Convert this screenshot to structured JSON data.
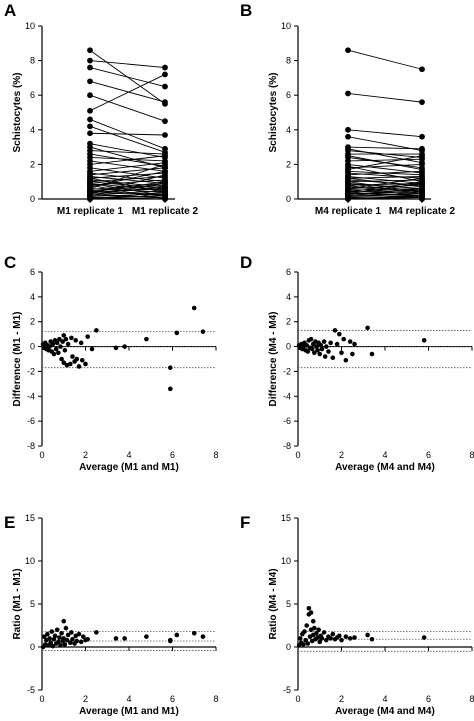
{
  "figure": {
    "panel_labels": [
      "A",
      "B",
      "C",
      "D",
      "E",
      "F"
    ]
  },
  "chart_data": [
    {
      "panel": "A",
      "type": "line",
      "description": "paired replicate measurements (before-after lines)",
      "categories": [
        "M1 replicate 1",
        "M1 replicate 2"
      ],
      "ylabel": "Schistocytes (%)",
      "ylim": [
        0,
        10
      ],
      "yticks": [
        0,
        2,
        4,
        6,
        8,
        10
      ],
      "pairs": [
        [
          8.6,
          5.5
        ],
        [
          8.0,
          7.6
        ],
        [
          7.6,
          6.5
        ],
        [
          6.8,
          5.6
        ],
        [
          6.0,
          4.5
        ],
        [
          5.1,
          7.2
        ],
        [
          4.6,
          2.9
        ],
        [
          4.2,
          2.7
        ],
        [
          3.8,
          3.7
        ],
        [
          3.2,
          2.4
        ],
        [
          3.0,
          1.8
        ],
        [
          2.8,
          2.6
        ],
        [
          2.6,
          1.9
        ],
        [
          2.4,
          2.2
        ],
        [
          2.2,
          1.6
        ],
        [
          2.0,
          2.5
        ],
        [
          1.8,
          1.2
        ],
        [
          1.6,
          2.1
        ],
        [
          1.5,
          1.0
        ],
        [
          1.4,
          1.8
        ],
        [
          1.3,
          0.9
        ],
        [
          1.2,
          1.5
        ],
        [
          1.1,
          0.7
        ],
        [
          1.0,
          1.3
        ],
        [
          0.9,
          0.5
        ],
        [
          0.8,
          1.1
        ],
        [
          0.7,
          1.6
        ],
        [
          0.6,
          0.4
        ],
        [
          0.55,
          0.9
        ],
        [
          0.5,
          0.2
        ],
        [
          0.45,
          0.8
        ],
        [
          0.4,
          0.6
        ],
        [
          0.35,
          0.3
        ],
        [
          0.3,
          0.7
        ],
        [
          0.25,
          0.1
        ],
        [
          0.2,
          0.5
        ],
        [
          0.15,
          0.3
        ],
        [
          0.1,
          0.0
        ],
        [
          0.05,
          0.2
        ],
        [
          0.0,
          0.1
        ],
        [
          0.0,
          0.4
        ],
        [
          0.0,
          0.0
        ],
        [
          0.3,
          1.4
        ],
        [
          0.6,
          2.0
        ],
        [
          0.9,
          0.2
        ],
        [
          1.2,
          0.4
        ],
        [
          0.4,
          1.0
        ],
        [
          0.8,
          0.0
        ],
        [
          0.2,
          0.9
        ],
        [
          1.0,
          0.6
        ]
      ]
    },
    {
      "panel": "B",
      "type": "line",
      "description": "paired replicate measurements (before-after lines)",
      "categories": [
        "M4 replicate 1",
        "M4 replicate 2"
      ],
      "ylabel": "Schistocytes (%)",
      "ylim": [
        0,
        10
      ],
      "yticks": [
        0,
        2,
        4,
        6,
        8,
        10
      ],
      "pairs": [
        [
          8.6,
          7.5
        ],
        [
          6.1,
          5.6
        ],
        [
          4.0,
          3.6
        ],
        [
          3.6,
          2.8
        ],
        [
          3.0,
          2.9
        ],
        [
          2.8,
          2.4
        ],
        [
          2.6,
          2.6
        ],
        [
          2.4,
          1.8
        ],
        [
          2.2,
          2.3
        ],
        [
          2.0,
          1.5
        ],
        [
          1.8,
          2.0
        ],
        [
          1.6,
          1.4
        ],
        [
          1.5,
          1.2
        ],
        [
          1.4,
          1.6
        ],
        [
          1.3,
          0.9
        ],
        [
          1.2,
          1.3
        ],
        [
          1.1,
          0.8
        ],
        [
          1.0,
          1.1
        ],
        [
          0.9,
          0.6
        ],
        [
          0.8,
          0.9
        ],
        [
          0.7,
          0.5
        ],
        [
          0.6,
          0.8
        ],
        [
          0.55,
          0.4
        ],
        [
          0.5,
          0.6
        ],
        [
          0.45,
          0.3
        ],
        [
          0.4,
          0.5
        ],
        [
          0.35,
          0.2
        ],
        [
          0.3,
          0.4
        ],
        [
          0.25,
          0.1
        ],
        [
          0.2,
          0.3
        ],
        [
          0.15,
          0.2
        ],
        [
          0.1,
          0.0
        ],
        [
          0.05,
          0.1
        ],
        [
          0.0,
          0.2
        ],
        [
          0.0,
          0.0
        ],
        [
          0.0,
          0.1
        ],
        [
          0.3,
          0.9
        ],
        [
          0.6,
          1.2
        ],
        [
          0.9,
          0.3
        ],
        [
          1.2,
          0.7
        ],
        [
          0.4,
          1.0
        ],
        [
          0.8,
          0.1
        ],
        [
          0.2,
          0.6
        ],
        [
          1.0,
          0.4
        ],
        [
          1.9,
          1.0
        ],
        [
          2.5,
          1.7
        ],
        [
          1.7,
          2.5
        ],
        [
          2.9,
          2.1
        ]
      ]
    },
    {
      "panel": "C",
      "type": "scatter",
      "description": "Bland-Altman difference plot",
      "xlabel": "Average (M1 and M1)",
      "ylabel": "Difference (M1 - M1)",
      "xlim": [
        0,
        8
      ],
      "ylim": [
        -8,
        6
      ],
      "xticks": [
        0,
        2,
        4,
        6,
        8
      ],
      "yticks": [
        -8,
        -6,
        -4,
        -2,
        0,
        2,
        4,
        6
      ],
      "reference_lines": {
        "upper_loa": 1.2,
        "bias": 0.0,
        "lower_loa": -1.7
      },
      "points": [
        [
          0.05,
          0.2
        ],
        [
          0.1,
          -0.1
        ],
        [
          0.15,
          0.3
        ],
        [
          0.2,
          -0.2
        ],
        [
          0.25,
          0.1
        ],
        [
          0.3,
          -0.3
        ],
        [
          0.35,
          0.0
        ],
        [
          0.4,
          0.4
        ],
        [
          0.45,
          -0.4
        ],
        [
          0.5,
          0.2
        ],
        [
          0.55,
          -0.6
        ],
        [
          0.6,
          0.5
        ],
        [
          0.65,
          -0.2
        ],
        [
          0.7,
          0.3
        ],
        [
          0.75,
          -0.5
        ],
        [
          0.8,
          0.6
        ],
        [
          0.85,
          0.0
        ],
        [
          0.9,
          -1.0
        ],
        [
          0.95,
          0.4
        ],
        [
          1.0,
          -1.3
        ],
        [
          1.0,
          0.9
        ],
        [
          1.05,
          -0.3
        ],
        [
          1.1,
          0.6
        ],
        [
          1.15,
          -1.5
        ],
        [
          1.2,
          0.2
        ],
        [
          1.3,
          -1.4
        ],
        [
          1.35,
          0.7
        ],
        [
          1.4,
          -0.8
        ],
        [
          1.5,
          -1.2
        ],
        [
          1.55,
          0.5
        ],
        [
          1.6,
          -1.0
        ],
        [
          1.7,
          -1.6
        ],
        [
          1.8,
          0.3
        ],
        [
          1.85,
          -1.1
        ],
        [
          2.0,
          -1.4
        ],
        [
          2.1,
          0.8
        ],
        [
          2.3,
          -0.2
        ],
        [
          2.5,
          1.3
        ],
        [
          3.4,
          -0.1
        ],
        [
          3.8,
          0.0
        ],
        [
          4.8,
          0.6
        ],
        [
          5.9,
          -1.7
        ],
        [
          5.9,
          -3.4
        ],
        [
          6.2,
          1.1
        ],
        [
          7.0,
          3.1
        ],
        [
          7.4,
          1.2
        ]
      ]
    },
    {
      "panel": "D",
      "type": "scatter",
      "description": "Bland-Altman difference plot",
      "xlabel": "Average (M4 and M4)",
      "ylabel": "Difference (M4 - M4)",
      "xlim": [
        0,
        8
      ],
      "ylim": [
        -8,
        6
      ],
      "xticks": [
        0,
        2,
        4,
        6,
        8
      ],
      "yticks": [
        -8,
        -6,
        -4,
        -2,
        0,
        2,
        4,
        6
      ],
      "reference_lines": {
        "upper_loa": 1.3,
        "bias": 0.0,
        "lower_loa": -1.7
      },
      "points": [
        [
          0.05,
          0.1
        ],
        [
          0.1,
          -0.1
        ],
        [
          0.15,
          0.2
        ],
        [
          0.2,
          -0.2
        ],
        [
          0.25,
          0.0
        ],
        [
          0.3,
          0.3
        ],
        [
          0.35,
          -0.3
        ],
        [
          0.4,
          0.1
        ],
        [
          0.45,
          -0.4
        ],
        [
          0.5,
          0.5
        ],
        [
          0.55,
          -0.1
        ],
        [
          0.6,
          0.6
        ],
        [
          0.65,
          -0.2
        ],
        [
          0.7,
          0.2
        ],
        [
          0.75,
          -0.5
        ],
        [
          0.8,
          0.4
        ],
        [
          0.85,
          0.0
        ],
        [
          0.9,
          -0.3
        ],
        [
          0.95,
          0.3
        ],
        [
          1.0,
          -0.6
        ],
        [
          1.05,
          0.1
        ],
        [
          1.1,
          -0.2
        ],
        [
          1.2,
          0.4
        ],
        [
          1.25,
          -0.8
        ],
        [
          1.3,
          0.0
        ],
        [
          1.4,
          -0.4
        ],
        [
          1.5,
          0.3
        ],
        [
          1.6,
          -0.9
        ],
        [
          1.7,
          1.3
        ],
        [
          1.8,
          0.2
        ],
        [
          1.9,
          1.0
        ],
        [
          2.0,
          -0.5
        ],
        [
          2.1,
          0.6
        ],
        [
          2.2,
          -1.1
        ],
        [
          2.4,
          0.4
        ],
        [
          2.5,
          -0.6
        ],
        [
          2.6,
          0.2
        ],
        [
          3.2,
          1.5
        ],
        [
          3.4,
          -0.6
        ],
        [
          5.8,
          0.5
        ]
      ]
    },
    {
      "panel": "E",
      "type": "scatter",
      "description": "ratio plot",
      "xlabel": "Average (M1 and M1)",
      "ylabel": "Ratio (M1 - M1)",
      "xlim": [
        0,
        8
      ],
      "ylim": [
        -5,
        15
      ],
      "xticks": [
        0,
        2,
        4,
        6,
        8
      ],
      "yticks": [
        -5,
        0,
        5,
        10,
        15
      ],
      "reference_lines": {
        "upper_loa": 1.8,
        "bias": 0.7,
        "lower_loa": -0.4
      },
      "points": [
        [
          0.05,
          0.0
        ],
        [
          0.1,
          1.2
        ],
        [
          0.15,
          0.3
        ],
        [
          0.2,
          0.8
        ],
        [
          0.25,
          1.5
        ],
        [
          0.3,
          0.2
        ],
        [
          0.35,
          1.0
        ],
        [
          0.4,
          0.5
        ],
        [
          0.45,
          1.8
        ],
        [
          0.5,
          0.1
        ],
        [
          0.55,
          0.9
        ],
        [
          0.6,
          1.3
        ],
        [
          0.65,
          0.4
        ],
        [
          0.7,
          2.0
        ],
        [
          0.75,
          0.6
        ],
        [
          0.8,
          1.1
        ],
        [
          0.85,
          0.2
        ],
        [
          0.9,
          1.6
        ],
        [
          0.95,
          0.7
        ],
        [
          1.0,
          3.0
        ],
        [
          1.0,
          1.0
        ],
        [
          1.05,
          0.3
        ],
        [
          1.1,
          2.2
        ],
        [
          1.15,
          0.8
        ],
        [
          1.2,
          1.4
        ],
        [
          1.3,
          0.5
        ],
        [
          1.35,
          1.7
        ],
        [
          1.4,
          0.9
        ],
        [
          1.5,
          0.4
        ],
        [
          1.55,
          1.3
        ],
        [
          1.6,
          0.7
        ],
        [
          1.7,
          1.5
        ],
        [
          1.8,
          0.6
        ],
        [
          1.9,
          1.2
        ],
        [
          2.0,
          0.8
        ],
        [
          2.1,
          0.9
        ],
        [
          2.5,
          1.7
        ],
        [
          3.4,
          1.0
        ],
        [
          3.8,
          1.0
        ],
        [
          4.8,
          1.2
        ],
        [
          5.9,
          0.7
        ],
        [
          5.9,
          0.8
        ],
        [
          6.2,
          1.4
        ],
        [
          7.0,
          1.6
        ],
        [
          7.4,
          1.2
        ]
      ]
    },
    {
      "panel": "F",
      "type": "scatter",
      "description": "ratio plot",
      "xlabel": "Average (M4 and M4)",
      "ylabel": "Ratio (M4 - M4)",
      "xlim": [
        0,
        8
      ],
      "ylim": [
        -5,
        15
      ],
      "xticks": [
        0,
        2,
        4,
        6,
        8
      ],
      "yticks": [
        -5,
        0,
        5,
        10,
        15
      ],
      "reference_lines": {
        "upper_loa": 1.8,
        "bias": 0.9,
        "lower_loa": -0.5
      },
      "points": [
        [
          0.05,
          0.2
        ],
        [
          0.1,
          1.0
        ],
        [
          0.15,
          0.5
        ],
        [
          0.2,
          1.5
        ],
        [
          0.25,
          0.3
        ],
        [
          0.3,
          1.8
        ],
        [
          0.35,
          0.8
        ],
        [
          0.4,
          2.5
        ],
        [
          0.45,
          0.4
        ],
        [
          0.5,
          4.5
        ],
        [
          0.5,
          3.8
        ],
        [
          0.55,
          1.2
        ],
        [
          0.6,
          4.0
        ],
        [
          0.6,
          2.0
        ],
        [
          0.65,
          0.7
        ],
        [
          0.7,
          3.0
        ],
        [
          0.7,
          1.4
        ],
        [
          0.75,
          2.2
        ],
        [
          0.8,
          0.9
        ],
        [
          0.85,
          1.6
        ],
        [
          0.9,
          1.1
        ],
        [
          0.95,
          2.0
        ],
        [
          1.0,
          0.6
        ],
        [
          1.05,
          1.3
        ],
        [
          1.1,
          1.0
        ],
        [
          1.2,
          1.7
        ],
        [
          1.3,
          0.8
        ],
        [
          1.4,
          1.2
        ],
        [
          1.5,
          1.0
        ],
        [
          1.6,
          1.5
        ],
        [
          1.7,
          0.9
        ],
        [
          1.8,
          1.1
        ],
        [
          1.9,
          1.3
        ],
        [
          2.0,
          0.8
        ],
        [
          2.2,
          1.2
        ],
        [
          2.4,
          1.0
        ],
        [
          2.6,
          1.1
        ],
        [
          3.2,
          1.4
        ],
        [
          3.4,
          0.9
        ],
        [
          5.8,
          1.1
        ]
      ]
    }
  ]
}
